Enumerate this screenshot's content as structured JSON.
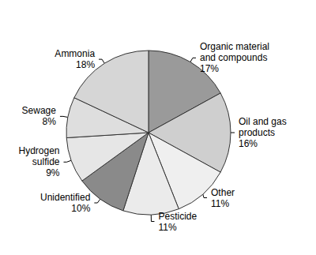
{
  "chart_data": {
    "type": "pie",
    "categories": [
      "Organic material\nand compounds",
      "Oil and gas\nproducts",
      "Other",
      "Pesticide",
      "Unidentified",
      "Hydrogen\nsulfide",
      "Sewage",
      "Ammonia"
    ],
    "values": [
      17,
      16,
      11,
      11,
      10,
      9,
      8,
      18
    ],
    "value_labels": [
      "17%",
      "16%",
      "11%",
      "11%",
      "10%",
      "9%",
      "8%",
      "18%"
    ],
    "colors": [
      "#9a9a9a",
      "#cfcfcf",
      "#efefef",
      "#ebebeb",
      "#8a8a8a",
      "#e6e6e6",
      "#dedede",
      "#d6d6d6"
    ],
    "data_labels": true
  }
}
